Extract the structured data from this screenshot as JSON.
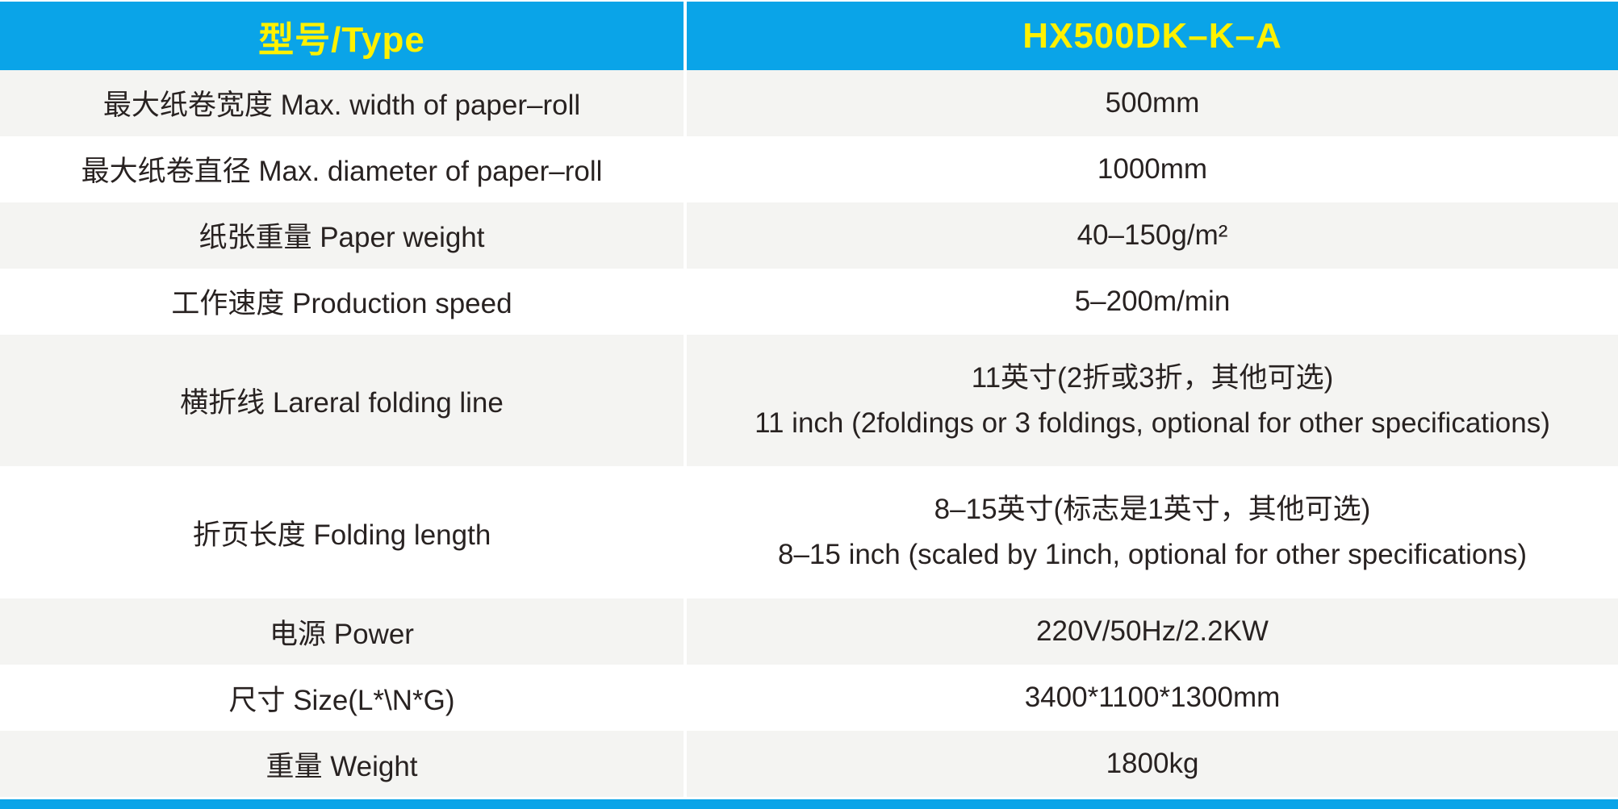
{
  "table": {
    "header": {
      "col1": "型号/Type",
      "col2": "HX500DK–K–A"
    },
    "rows": [
      {
        "label": "最大纸卷宽度 Max. width of paper–roll",
        "value": [
          "500mm"
        ]
      },
      {
        "label": "最大纸卷直径 Max. diameter of paper–roll",
        "value": [
          "1000mm"
        ]
      },
      {
        "label": "纸张重量 Paper weight",
        "value": [
          "40–150g/m²"
        ]
      },
      {
        "label": "工作速度 Production speed",
        "value": [
          "5–200m/min"
        ]
      },
      {
        "label": "横折线 Lareral folding line",
        "value": [
          "11英寸(2折或3折，其他可选)",
          "11 inch (2foldings or 3 foldings, optional for other specifications)"
        ]
      },
      {
        "label": "折页长度 Folding length",
        "value": [
          "8–15英寸(标志是1英寸，其他可选)",
          "8–15 inch (scaled by 1inch, optional for other specifications)"
        ]
      },
      {
        "label": "电源 Power",
        "value": [
          "220V/50Hz/2.2KW"
        ]
      },
      {
        "label": "尺寸 Size(L*\\N*G)",
        "value": [
          "3400*1100*1300mm"
        ]
      },
      {
        "label": "重量 Weight",
        "value": [
          "1800kg"
        ]
      }
    ]
  },
  "colors": {
    "header_bg": "#0AA4E8",
    "header_text": "#FFF100",
    "alt_row_bg": "#F4F4F2",
    "row_bg": "#FFFFFF",
    "body_text": "#282221",
    "bottom_bar": "#0AA4E8",
    "divider": "#FFFFFF"
  }
}
